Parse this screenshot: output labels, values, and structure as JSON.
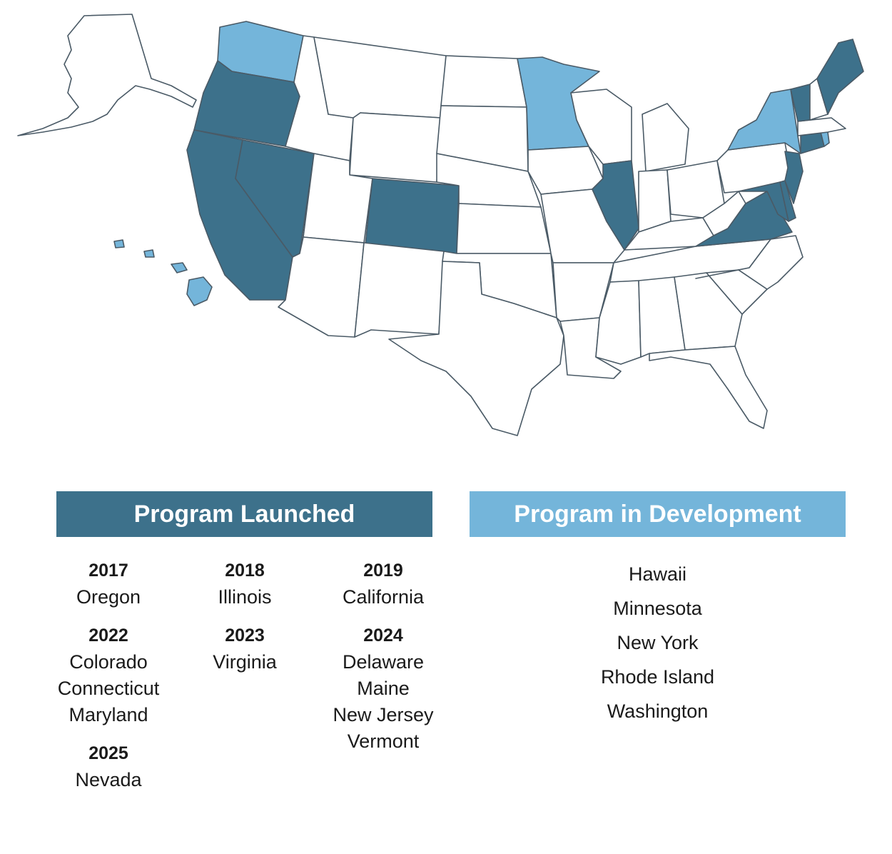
{
  "colors": {
    "launched": "#3d718b",
    "development": "#74b5da",
    "none": "#ffffff",
    "border": "#4a5a66"
  },
  "legend": {
    "launched_label": "Program Launched",
    "development_label": "Program in Development"
  },
  "launched": {
    "columns": [
      [
        {
          "year": "2017",
          "states": [
            "Oregon"
          ]
        },
        {
          "year": "2022",
          "states": [
            "Colorado",
            "Connecticut",
            "Maryland"
          ]
        },
        {
          "year": "2025",
          "states": [
            "Nevada"
          ]
        }
      ],
      [
        {
          "year": "2018",
          "states": [
            "Illinois"
          ]
        },
        {
          "year": "2023",
          "states": [
            "Virginia"
          ]
        }
      ],
      [
        {
          "year": "2019",
          "states": [
            "California"
          ]
        },
        {
          "year": "2024",
          "states": [
            "Delaware",
            "Maine",
            "New Jersey",
            "Vermont"
          ]
        }
      ]
    ]
  },
  "development": {
    "states": [
      "Hawaii",
      "Minnesota",
      "New York",
      "Rhode Island",
      "Washington"
    ]
  },
  "map_states": {
    "launched": [
      "Oregon",
      "California",
      "Nevada",
      "Colorado",
      "Illinois",
      "Virginia",
      "Maryland",
      "Delaware",
      "New Jersey",
      "Connecticut",
      "Vermont",
      "Maine"
    ],
    "development": [
      "Washington",
      "Minnesota",
      "New York",
      "Rhode Island",
      "Hawaii"
    ]
  }
}
